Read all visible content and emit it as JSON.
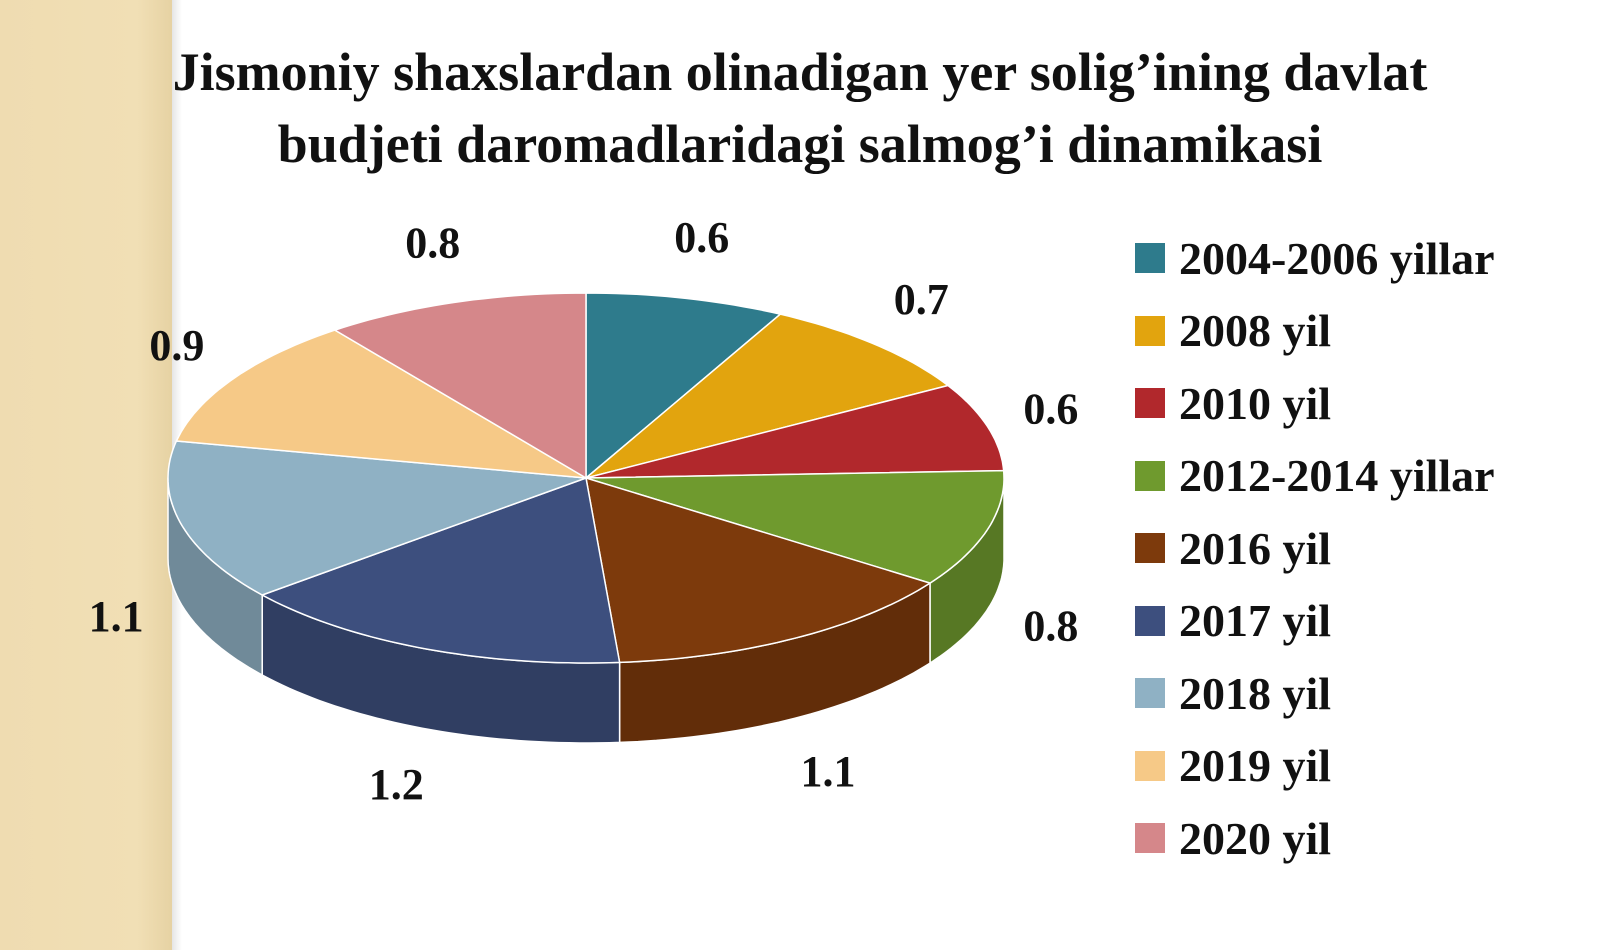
{
  "chart_data": {
    "type": "pie",
    "title_lines": [
      "Jismoniy shaxslardan olinadigan yer solig’ining davlat",
      "budjeti daromadlaridagi salmog’i dinamikasi"
    ],
    "categories": [
      "2004-2006 yillar",
      "2008 yil",
      "2010 yil",
      "2012-2014 yillar",
      "2016 yil",
      "2017 yil",
      "2018 yil",
      "2019 yil",
      "2020 yil"
    ],
    "values": [
      0.6,
      0.7,
      0.6,
      0.8,
      1.1,
      1.2,
      1.1,
      0.9,
      0.8
    ],
    "value_labels": [
      "0.6",
      "0.7",
      "0.6",
      "0.8",
      "1.1",
      "1.2",
      "1.1",
      "0.9",
      "0.8"
    ],
    "colors": [
      "#2e7b8c",
      "#e2a40e",
      "#b1282c",
      "#6f9a2e",
      "#7d3a0c",
      "#3d4f7e",
      "#8fb1c4",
      "#f6c987",
      "#d5878a"
    ],
    "legend_position": "right",
    "style": "3d-pie"
  }
}
